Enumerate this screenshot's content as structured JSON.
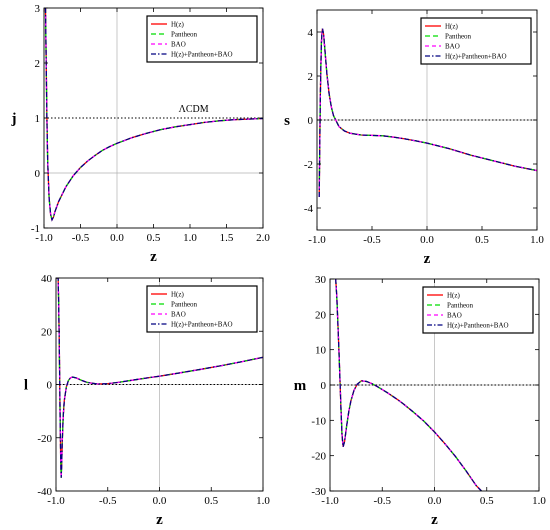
{
  "colors": {
    "Hz": "#ff0000",
    "Pantheon": "#00dd00",
    "BAO": "#ff00ff",
    "combined": "#000080",
    "reference": "#000000",
    "grid": "#b0b0b0"
  },
  "chart_data": [
    {
      "type": "line",
      "xlabel": "z",
      "ylabel": "j",
      "xlim": [
        -1.0,
        2.0
      ],
      "ylim": [
        -1,
        3
      ],
      "xticks": [
        "-1.0",
        "-0.5",
        "0.0",
        "0.5",
        "1.0",
        "1.5",
        "2.0"
      ],
      "yticks": [
        "-1",
        "0",
        "1",
        "2",
        "3"
      ],
      "reference": {
        "y": 1,
        "label": "ΛCDM"
      },
      "legend_position": "top-right",
      "series": [
        {
          "name": "H(z)",
          "style": "solid"
        },
        {
          "name": "Pantheon",
          "style": "solid"
        },
        {
          "name": "BAO",
          "style": "dashed"
        },
        {
          "name": "H(z)+Pantheon+BAO",
          "style": "dotdash"
        }
      ],
      "x": [
        -0.98,
        -0.97,
        -0.96,
        -0.95,
        -0.93,
        -0.91,
        -0.89,
        -0.87,
        -0.85,
        -0.8,
        -0.7,
        -0.6,
        -0.5,
        -0.4,
        -0.3,
        -0.2,
        -0.1,
        0.0,
        0.2,
        0.4,
        0.6,
        0.8,
        1.0,
        1.2,
        1.4,
        1.6,
        1.8,
        2.0
      ],
      "y": [
        3.0,
        2.0,
        1.0,
        0.2,
        -0.45,
        -0.75,
        -0.85,
        -0.8,
        -0.7,
        -0.52,
        -0.25,
        -0.05,
        0.1,
        0.22,
        0.32,
        0.41,
        0.48,
        0.54,
        0.64,
        0.72,
        0.79,
        0.84,
        0.88,
        0.92,
        0.95,
        0.97,
        0.98,
        0.99
      ]
    },
    {
      "type": "line",
      "xlabel": "z",
      "ylabel": "s",
      "xlim": [
        -1.0,
        1.0
      ],
      "ylim": [
        -5,
        5
      ],
      "xticks": [
        "-1.0",
        "-0.5",
        "0.0",
        "0.5",
        "1.0"
      ],
      "yticks": [
        "-4",
        "-2",
        "0",
        "2",
        "4"
      ],
      "reference": {
        "y": 0,
        "label": ""
      },
      "legend_position": "top-right",
      "series": [
        {
          "name": "H(z)",
          "style": "solid"
        },
        {
          "name": "Pantheon",
          "style": "solid"
        },
        {
          "name": "BAO",
          "style": "dashed"
        },
        {
          "name": "H(z)+Pantheon+BAO",
          "style": "dotdash"
        }
      ],
      "x": [
        -0.98,
        -0.975,
        -0.97,
        -0.965,
        -0.96,
        -0.955,
        -0.95,
        -0.94,
        -0.93,
        -0.91,
        -0.89,
        -0.87,
        -0.85,
        -0.8,
        -0.75,
        -0.7,
        -0.6,
        -0.5,
        -0.4,
        -0.3,
        -0.2,
        -0.1,
        0.0,
        0.2,
        0.4,
        0.6,
        0.8,
        1.0
      ],
      "y": [
        -3.5,
        -1.0,
        1.0,
        2.5,
        3.5,
        4.0,
        4.15,
        3.9,
        3.3,
        2.1,
        1.2,
        0.6,
        0.2,
        -0.3,
        -0.5,
        -0.6,
        -0.68,
        -0.7,
        -0.72,
        -0.78,
        -0.86,
        -0.95,
        -1.05,
        -1.3,
        -1.6,
        -1.85,
        -2.1,
        -2.3
      ]
    },
    {
      "type": "line",
      "xlabel": "z",
      "ylabel": "l",
      "xlim": [
        -1.0,
        1.0
      ],
      "ylim": [
        -40,
        40
      ],
      "xticks": [
        "-1.0",
        "-0.5",
        "0.0",
        "0.5",
        "1.0"
      ],
      "yticks": [
        "-40",
        "-20",
        "0",
        "20",
        "40"
      ],
      "reference": {
        "y": 0,
        "label": ""
      },
      "legend_position": "top-right",
      "series": [
        {
          "name": "H(z)",
          "style": "solid"
        },
        {
          "name": "Pantheon",
          "style": "solid"
        },
        {
          "name": "BAO",
          "style": "dashed"
        },
        {
          "name": "H(z)+Pantheon+BAO",
          "style": "dotdash"
        }
      ],
      "x": [
        -1.0,
        -0.99,
        -0.98,
        -0.975,
        -0.97,
        -0.965,
        -0.96,
        -0.955,
        -0.95,
        -0.945,
        -0.94,
        -0.93,
        -0.92,
        -0.9,
        -0.88,
        -0.86,
        -0.84,
        -0.8,
        -0.75,
        -0.7,
        -0.6,
        -0.5,
        -0.4,
        -0.3,
        -0.2,
        -0.1,
        0.0,
        0.2,
        0.4,
        0.6,
        0.8,
        1.0
      ],
      "y": [
        40,
        40,
        40,
        32,
        20,
        5,
        -12,
        -28,
        -35,
        -30,
        -22,
        -12,
        -6,
        -1,
        1.5,
        2.5,
        2.8,
        2.4,
        1.5,
        0.8,
        0.2,
        0.3,
        0.8,
        1.4,
        2.0,
        2.6,
        3.1,
        4.4,
        5.7,
        7.1,
        8.6,
        10.2
      ]
    },
    {
      "type": "line",
      "xlabel": "z",
      "ylabel": "m",
      "xlim": [
        -1.0,
        1.0
      ],
      "ylim": [
        -30,
        30
      ],
      "xticks": [
        "-1.0",
        "-0.5",
        "0.0",
        "0.5",
        "1.0"
      ],
      "yticks": [
        "-30",
        "-20",
        "-10",
        "0",
        "10",
        "20",
        "30"
      ],
      "reference": {
        "y": 0,
        "label": ""
      },
      "legend_position": "top-right",
      "series": [
        {
          "name": "H(z)",
          "style": "solid"
        },
        {
          "name": "Pantheon",
          "style": "solid"
        },
        {
          "name": "BAO",
          "style": "dashed"
        },
        {
          "name": "H(z)+Pantheon+BAO",
          "style": "dotdash"
        }
      ],
      "x": [
        -0.945,
        -0.935,
        -0.925,
        -0.915,
        -0.905,
        -0.895,
        -0.885,
        -0.875,
        -0.86,
        -0.84,
        -0.82,
        -0.8,
        -0.77,
        -0.74,
        -0.7,
        -0.65,
        -0.6,
        -0.55,
        -0.5,
        -0.45,
        -0.4,
        -0.35,
        -0.3,
        -0.25,
        -0.2,
        -0.1,
        0.0,
        0.1,
        0.2,
        0.3,
        0.4,
        0.45
      ],
      "y": [
        30,
        25,
        18,
        10,
        2,
        -7,
        -14,
        -17.5,
        -16,
        -11.5,
        -7.5,
        -4.5,
        -1.5,
        0.2,
        1.2,
        1.0,
        0.4,
        -0.4,
        -1.3,
        -2.2,
        -3.2,
        -4.2,
        -5.3,
        -6.5,
        -7.7,
        -10.3,
        -13.3,
        -16.6,
        -20.2,
        -24.2,
        -28.5,
        -30
      ]
    }
  ]
}
